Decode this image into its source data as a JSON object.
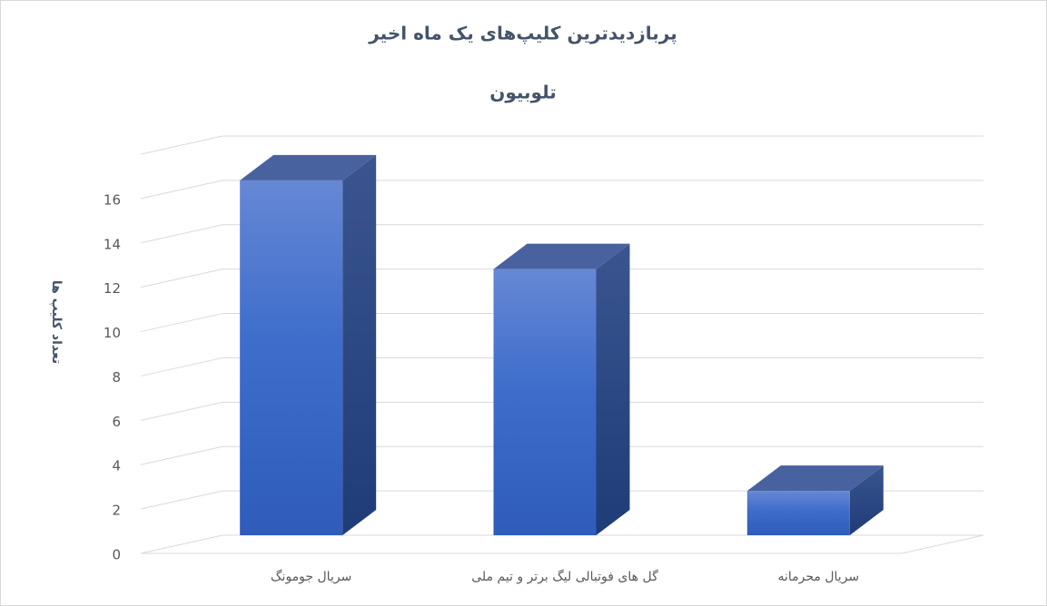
{
  "chart_data": {
    "type": "bar3d",
    "title": "پربازدیدترین کلیپ‌های یک ماه اخیر",
    "subtitle": "تلوبیون",
    "y_label": "تعداد کلیپ ها",
    "categories": [
      "سریال جومونگ",
      "گل های  فوتبالی لیگ برتر و تیم ملی",
      "سریال محرمانه"
    ],
    "values": [
      16,
      12,
      2
    ],
    "color": "#4472c4",
    "ylim": [
      0,
      18
    ],
    "yticks": [
      0,
      2,
      4,
      6,
      8,
      10,
      12,
      14,
      16
    ],
    "grid": true
  }
}
